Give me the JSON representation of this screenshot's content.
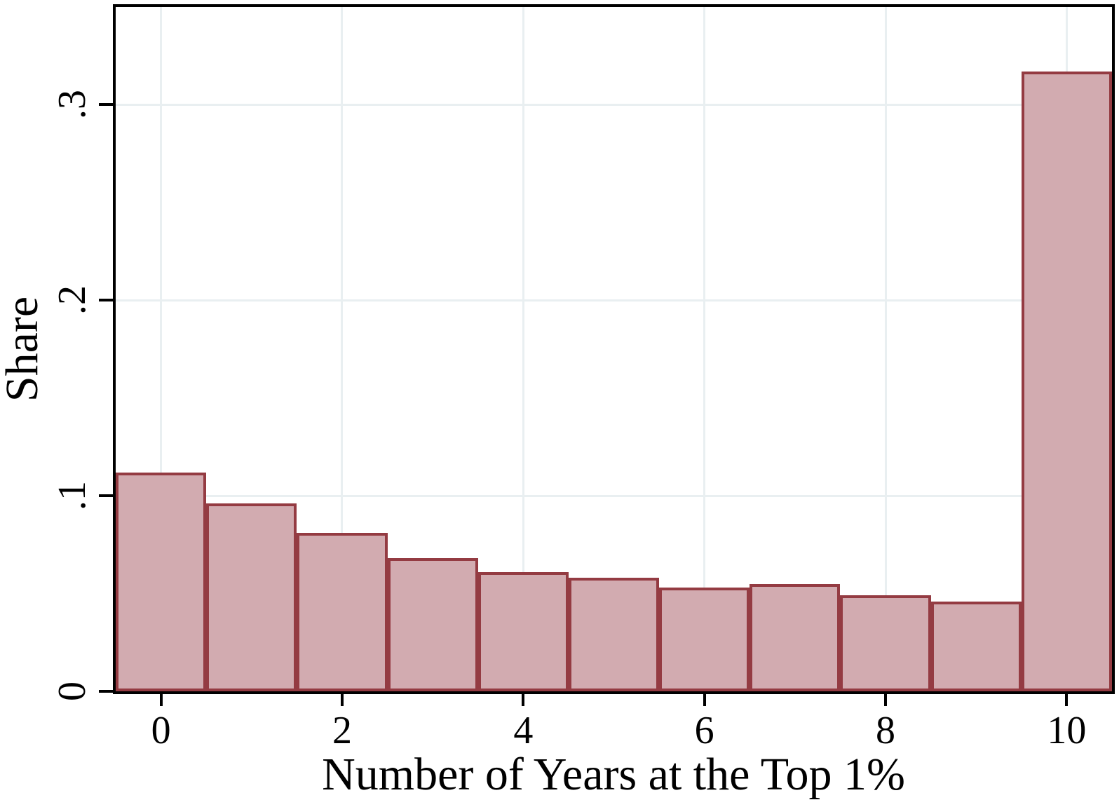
{
  "chart_data": {
    "type": "bar",
    "subtype": "histogram",
    "title": "",
    "xlabel": "Number of Years at the Top 1%",
    "ylabel": "Share",
    "categories": [
      0,
      1,
      2,
      3,
      4,
      5,
      6,
      7,
      8,
      9,
      10
    ],
    "values": [
      0.112,
      0.096,
      0.081,
      0.068,
      0.061,
      0.058,
      0.053,
      0.055,
      0.049,
      0.046,
      0.317
    ],
    "xlim": [
      -0.5,
      10.5
    ],
    "ylim": [
      0,
      0.35
    ],
    "xticks": [
      {
        "value": 0,
        "label": "0"
      },
      {
        "value": 2,
        "label": "2"
      },
      {
        "value": 4,
        "label": "4"
      },
      {
        "value": 6,
        "label": "6"
      },
      {
        "value": 8,
        "label": "8"
      },
      {
        "value": 10,
        "label": "10"
      }
    ],
    "yticks": [
      {
        "value": 0,
        "label": "0"
      },
      {
        "value": 0.1,
        "label": ".1"
      },
      {
        "value": 0.2,
        "label": ".2"
      },
      {
        "value": 0.3,
        "label": ".3"
      }
    ],
    "grid": true,
    "legend": "none",
    "colors": {
      "bar_fill": "#d2abb0",
      "bar_border": "#943b42",
      "gridline": "#e9eff1",
      "axis": "#000000",
      "text": "#000000",
      "background": "#ffffff"
    }
  }
}
